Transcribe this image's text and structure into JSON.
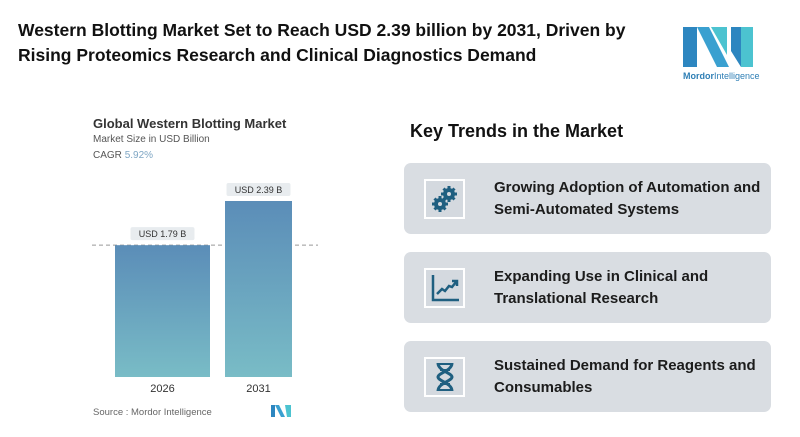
{
  "header": {
    "title": "Western Blotting Market Set to Reach USD 2.39 billion by 2031, Driven by Rising Proteomics Research and Clinical Diagnostics Demand",
    "logo": {
      "brand": "Mordor",
      "suffix": "Intelligence"
    }
  },
  "chart_data": {
    "type": "bar",
    "title": "Global Western Blotting Market",
    "subtitle": "Market Size in USD Billion",
    "cagr_label": "CAGR",
    "cagr_value": "5.92%",
    "categories": [
      "2026",
      "2031"
    ],
    "values": [
      1.79,
      2.39
    ],
    "data_labels": [
      "USD 1.79 B",
      "USD 2.39 B"
    ],
    "ylim": [
      0,
      2.39
    ],
    "grid": false,
    "reference_line": "dashed at 2026 value",
    "bar_color_top": "#5b8db8",
    "bar_color_bottom": "#79bcc6",
    "source": "Source :  Mordor Intelligence"
  },
  "trends": {
    "heading": "Key Trends in the Market",
    "items": [
      {
        "icon": "gears-icon",
        "label": "Growing Adoption of Automation and Semi-Automated Systems"
      },
      {
        "icon": "growth-chart-icon",
        "label": "Expanding Use in Clinical and Translational Research"
      },
      {
        "icon": "dna-icon",
        "label": "Sustained Demand for Reagents and Consumables"
      }
    ]
  },
  "colors": {
    "icon": "#1f5f80",
    "card": "#d9dde2",
    "accent": "#2f7fb5"
  }
}
